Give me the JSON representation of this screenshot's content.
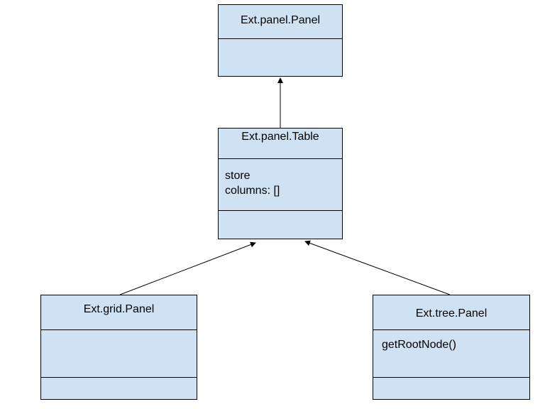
{
  "diagram": {
    "classes": {
      "panel": {
        "name": "Ext.panel.Panel"
      },
      "table": {
        "name": "Ext.panel.Table",
        "attributes": [
          "store",
          "columns: []"
        ]
      },
      "grid": {
        "name": "Ext.grid.Panel"
      },
      "tree": {
        "name": "Ext.tree.Panel",
        "methods": [
          "getRootNode()"
        ]
      }
    },
    "colors": {
      "box_fill": "#cfe2f3",
      "border": "#000000"
    }
  }
}
